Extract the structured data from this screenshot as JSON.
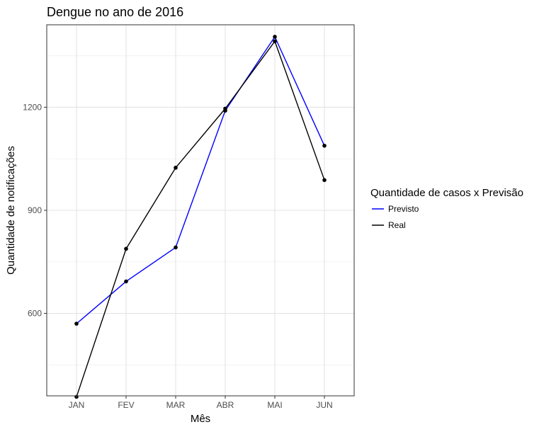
{
  "chart_data": {
    "type": "line",
    "title": "Dengue no ano de 2016",
    "xlabel": "Mês",
    "ylabel": "Quantidade de notificações",
    "categories": [
      "JAN",
      "FEV",
      "MAR",
      "ABR",
      "MAI",
      "JUN"
    ],
    "ylim": [
      360,
      1440
    ],
    "yticks": [
      600,
      900,
      1200
    ],
    "yminor": [
      450,
      750,
      1050,
      1350
    ],
    "grid": true,
    "legend": {
      "title": "Quantidade de casos x Previsão",
      "position": "right"
    },
    "series": [
      {
        "name": "Previsto",
        "color": "#0000ff",
        "values": [
          570,
          693,
          792,
          1190,
          1405,
          1088
        ]
      },
      {
        "name": "Real",
        "color": "#000000",
        "values": [
          357,
          788,
          1024,
          1196,
          1392,
          988
        ]
      }
    ],
    "point_color": "#000000"
  }
}
